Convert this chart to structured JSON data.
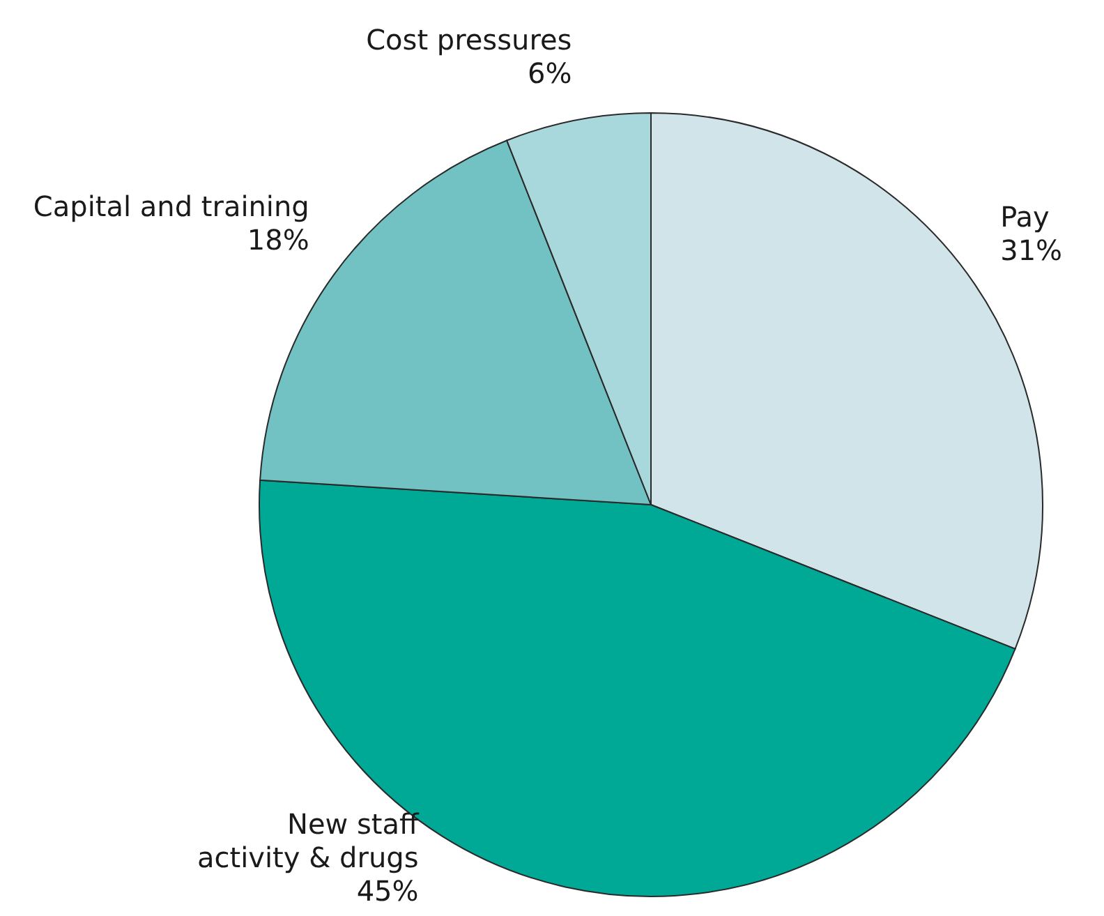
{
  "chart_data": {
    "type": "pie",
    "categories": [
      "Pay",
      "New staff\nactivity & drugs",
      "Capital and training",
      "Cost pressures"
    ],
    "values": [
      31,
      45,
      18,
      6
    ],
    "value_labels": [
      "31%",
      "45%",
      "18%",
      "6%"
    ],
    "colors": [
      "#d0e4ea",
      "#00a896",
      "#73c2c3",
      "#a8d8dc"
    ]
  }
}
